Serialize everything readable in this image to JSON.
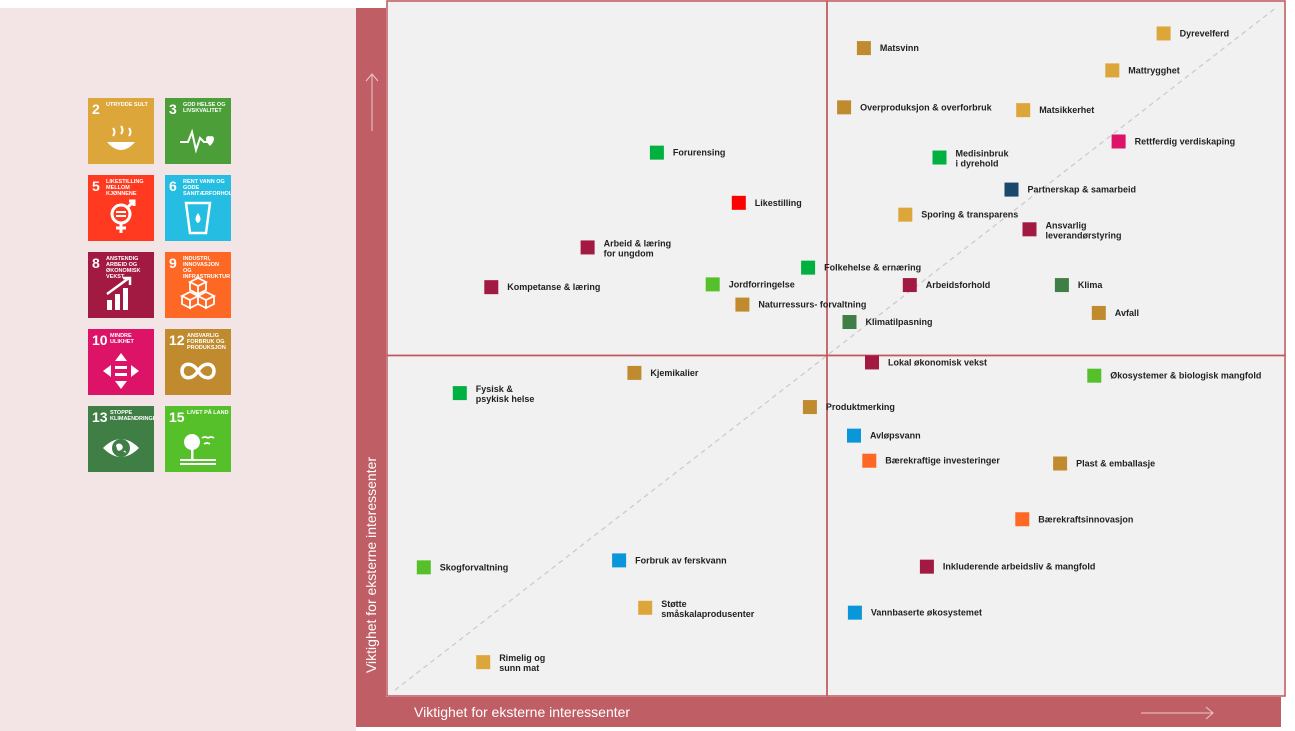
{
  "sdg_tiles": [
    {
      "number": "2",
      "title": "Utrydde sult",
      "color": "#dda63a",
      "icon": "bowl-icon"
    },
    {
      "number": "3",
      "title": "God helse og livskvalitet",
      "color": "#4c9f38",
      "icon": "heartbeat-icon"
    },
    {
      "number": "5",
      "title": "Likestilling mellom kjønnene",
      "color": "#ff3a21",
      "icon": "gender-icon"
    },
    {
      "number": "6",
      "title": "Rent vann og gode sanitærforhold",
      "color": "#26bde2",
      "icon": "water-glass-icon"
    },
    {
      "number": "8",
      "title": "Anstendig arbeid og økonomisk vekst",
      "color": "#a21942",
      "icon": "growth-bars-icon"
    },
    {
      "number": "9",
      "title": "Industri, innovasjon og infrastruktur",
      "color": "#fd6925",
      "icon": "cubes-icon"
    },
    {
      "number": "10",
      "title": "Mindre ulikhet",
      "color": "#dd1367",
      "icon": "equality-icon"
    },
    {
      "number": "12",
      "title": "Ansvarlig forbruk og produksjon",
      "color": "#bf8b2e",
      "icon": "infinity-icon"
    },
    {
      "number": "13",
      "title": "Stoppe klimaendringene",
      "color": "#3f7e44",
      "icon": "eye-globe-icon"
    },
    {
      "number": "15",
      "title": "Livet på land",
      "color": "#56c02b",
      "icon": "tree-icon"
    }
  ],
  "chart_data": {
    "type": "scatter",
    "title": "",
    "xlabel": "Viktighet for eksterne interessenter",
    "ylabel": "Viktighet for eksterne interessenter",
    "xlim": [
      0,
      1
    ],
    "ylim": [
      0,
      1
    ],
    "quadrant_split": {
      "x": 0.49,
      "y": 0.49
    },
    "diagonal_reference_line": true,
    "points": [
      {
        "label": "Dyrevelferd",
        "x": 0.864,
        "y": 0.952,
        "color": "#dda63a"
      },
      {
        "label": "Matsvinn",
        "x": 0.531,
        "y": 0.931,
        "color": "#bf8b2e"
      },
      {
        "label": "Mattrygghet",
        "x": 0.807,
        "y": 0.899,
        "color": "#dda63a"
      },
      {
        "label": "Overproduksjon & overforbruk",
        "x": 0.509,
        "y": 0.846,
        "color": "#bf8b2e"
      },
      {
        "label": "Matsikkerhet",
        "x": 0.708,
        "y": 0.842,
        "color": "#dda63a"
      },
      {
        "label": "Rettferdig verdiskaping",
        "x": 0.814,
        "y": 0.797,
        "color": "#dd1367"
      },
      {
        "label": "Forurensing",
        "x": 0.301,
        "y": 0.781,
        "color": "#00b140"
      },
      {
        "label": "Medisinbruk\ni dyrehold",
        "x": 0.615,
        "y": 0.774,
        "color": "#00b140"
      },
      {
        "label": "Partnerskap & samarbeid",
        "x": 0.695,
        "y": 0.728,
        "color": "#19486a"
      },
      {
        "label": "Likestilling",
        "x": 0.392,
        "y": 0.709,
        "color": "#ff0000"
      },
      {
        "label": "Sporing & transparens",
        "x": 0.577,
        "y": 0.692,
        "color": "#dda63a"
      },
      {
        "label": "Ansvarlig\nleverandørstyring",
        "x": 0.715,
        "y": 0.671,
        "color": "#a21942"
      },
      {
        "label": "Arbeid & læring\nfor ungdom",
        "x": 0.224,
        "y": 0.645,
        "color": "#a21942"
      },
      {
        "label": "Folkehelse & ernæring",
        "x": 0.469,
        "y": 0.616,
        "color": "#00b140"
      },
      {
        "label": "Jordforringelse",
        "x": 0.363,
        "y": 0.592,
        "color": "#56c02b"
      },
      {
        "label": "Arbeidsforhold",
        "x": 0.582,
        "y": 0.591,
        "color": "#a21942"
      },
      {
        "label": "Klima",
        "x": 0.751,
        "y": 0.591,
        "color": "#3f7e44"
      },
      {
        "label": "Kompetanse & læring",
        "x": 0.117,
        "y": 0.588,
        "color": "#a21942"
      },
      {
        "label": "Naturressurs- forvaltning",
        "x": 0.396,
        "y": 0.563,
        "color": "#bf8b2e"
      },
      {
        "label": "Avfall",
        "x": 0.792,
        "y": 0.551,
        "color": "#bf8b2e"
      },
      {
        "label": "Klimatilpasning",
        "x": 0.515,
        "y": 0.538,
        "color": "#3f7e44"
      },
      {
        "label": "Lokal økonomisk vekst",
        "x": 0.54,
        "y": 0.48,
        "color": "#a21942"
      },
      {
        "label": "Kjemikalier",
        "x": 0.276,
        "y": 0.465,
        "color": "#bf8b2e"
      },
      {
        "label": "Økosystemer & biologisk mangfold",
        "x": 0.787,
        "y": 0.461,
        "color": "#56c02b"
      },
      {
        "label": "Fysisk &\npsykisk helse",
        "x": 0.082,
        "y": 0.436,
        "color": "#00b140"
      },
      {
        "label": "Produktmerking",
        "x": 0.471,
        "y": 0.416,
        "color": "#bf8b2e"
      },
      {
        "label": "Avløpsvann",
        "x": 0.52,
        "y": 0.375,
        "color": "#0a97d9"
      },
      {
        "label": "Bærekraftige investeringer",
        "x": 0.537,
        "y": 0.339,
        "color": "#fd6925"
      },
      {
        "label": "Plast & emballasje",
        "x": 0.749,
        "y": 0.335,
        "color": "#bf8b2e"
      },
      {
        "label": "Bærekraftsinnovasjon",
        "x": 0.707,
        "y": 0.255,
        "color": "#fd6925"
      },
      {
        "label": "Forbruk av ferskvann",
        "x": 0.259,
        "y": 0.196,
        "color": "#0a97d9"
      },
      {
        "label": "Skogforvaltning",
        "x": 0.042,
        "y": 0.186,
        "color": "#56c02b"
      },
      {
        "label": "Inkluderende arbeidsliv & mangfold",
        "x": 0.601,
        "y": 0.187,
        "color": "#a21942"
      },
      {
        "label": "Støtte\nsmåskalaprodusenter",
        "x": 0.288,
        "y": 0.128,
        "color": "#dda63a"
      },
      {
        "label": "Vannbaserte økosystemet",
        "x": 0.521,
        "y": 0.121,
        "color": "#0a97d9"
      },
      {
        "label": "Rimelig og\nsunn mat",
        "x": 0.108,
        "y": 0.05,
        "color": "#dda63a"
      }
    ]
  }
}
